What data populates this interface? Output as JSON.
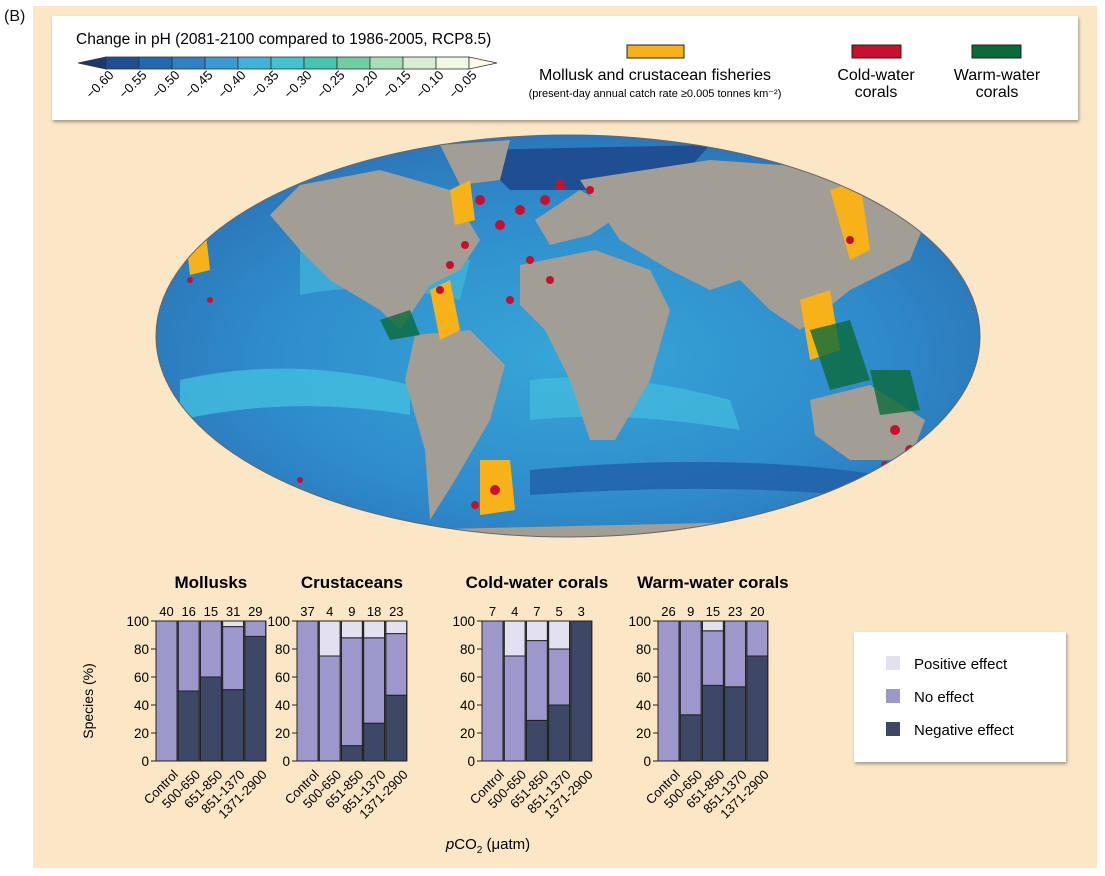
{
  "panel_label": "(B)",
  "ph_legend": {
    "title": "Change in pH (2081-2100 compared to 1986-2005, RCP8.5)",
    "ticks": [
      "−0.60",
      "−0.55",
      "−0.50",
      "−0.45",
      "−0.40",
      "−0.35",
      "−0.30",
      "−0.25",
      "−0.20",
      "−0.15",
      "−0.10",
      "−0.05"
    ],
    "colors": [
      "#1a3a6e",
      "#1f4f92",
      "#2668b0",
      "#2f80c4",
      "#3a9ad2",
      "#3fb3d9",
      "#40c4cf",
      "#43c5b0",
      "#6fcfa0",
      "#a8dfb3",
      "#d6eed2",
      "#f1f8e4",
      "#fffbe8"
    ]
  },
  "map_legend": {
    "fisheries_label": "Mollusk and crustacean fisheries",
    "fisheries_sub": "(present-day annual catch rate ≥0.005 tonnes km⁻²)",
    "fisheries_color": "#f8b219",
    "cold_label_1": "Cold-water",
    "cold_label_2": "corals",
    "cold_color": "#c8102e",
    "warm_label_1": "Warm-water",
    "warm_label_2": "corals",
    "warm_color": "#0a6a3a"
  },
  "effect_legend": {
    "positive": "Positive effect",
    "no_effect": "No effect",
    "negative": "Negative effect",
    "positive_color": "#e3e0f0",
    "no_effect_color": "#9c98cc",
    "negative_color": "#3d4866"
  },
  "axis": {
    "ylabel": "Species (%)",
    "xlabel_prefix": "p",
    "xlabel_main": "CO",
    "xlabel_sub": "2",
    "xlabel_unit": " (μatm)"
  },
  "chart_data": {
    "type": "bar",
    "stacked": true,
    "categories": [
      "Control",
      "500-650",
      "651-850",
      "851-1370",
      "1371-2900"
    ],
    "ylabel": "Species (%)",
    "xlabel": "pCO2 (μatm)",
    "ylim": [
      0,
      100
    ],
    "yticks": [
      0,
      20,
      40,
      60,
      80,
      100
    ],
    "panels": [
      {
        "title": "Mollusks",
        "counts": [
          40,
          16,
          15,
          31,
          29
        ],
        "series": [
          {
            "name": "Negative effect",
            "values": [
              0,
              50,
              60,
              51,
              89
            ]
          },
          {
            "name": "No effect",
            "values": [
              100,
              50,
              40,
              45,
              11
            ]
          },
          {
            "name": "Positive effect",
            "values": [
              0,
              0,
              0,
              4,
              0
            ]
          }
        ]
      },
      {
        "title": "Crustaceans",
        "counts": [
          37,
          4,
          9,
          18,
          23
        ],
        "series": [
          {
            "name": "Negative effect",
            "values": [
              0,
              0,
              11,
              27,
              47
            ]
          },
          {
            "name": "No effect",
            "values": [
              100,
              75,
              77,
              61,
              44
            ]
          },
          {
            "name": "Positive effect",
            "values": [
              0,
              25,
              12,
              12,
              9
            ]
          }
        ]
      },
      {
        "title": "Cold-water corals",
        "counts": [
          7,
          4,
          7,
          5,
          3
        ],
        "series": [
          {
            "name": "Negative effect",
            "values": [
              0,
              0,
              29,
              40,
              100
            ]
          },
          {
            "name": "No effect",
            "values": [
              100,
              75,
              57,
              40,
              0
            ]
          },
          {
            "name": "Positive effect",
            "values": [
              0,
              25,
              14,
              20,
              0
            ]
          }
        ]
      },
      {
        "title": "Warm-water corals",
        "counts": [
          26,
          9,
          15,
          23,
          20
        ],
        "series": [
          {
            "name": "Negative effect",
            "values": [
              0,
              33,
              54,
              53,
              75
            ]
          },
          {
            "name": "No effect",
            "values": [
              100,
              67,
              39,
              47,
              25
            ]
          },
          {
            "name": "Positive effect",
            "values": [
              0,
              0,
              7,
              0,
              0
            ]
          }
        ]
      }
    ]
  }
}
